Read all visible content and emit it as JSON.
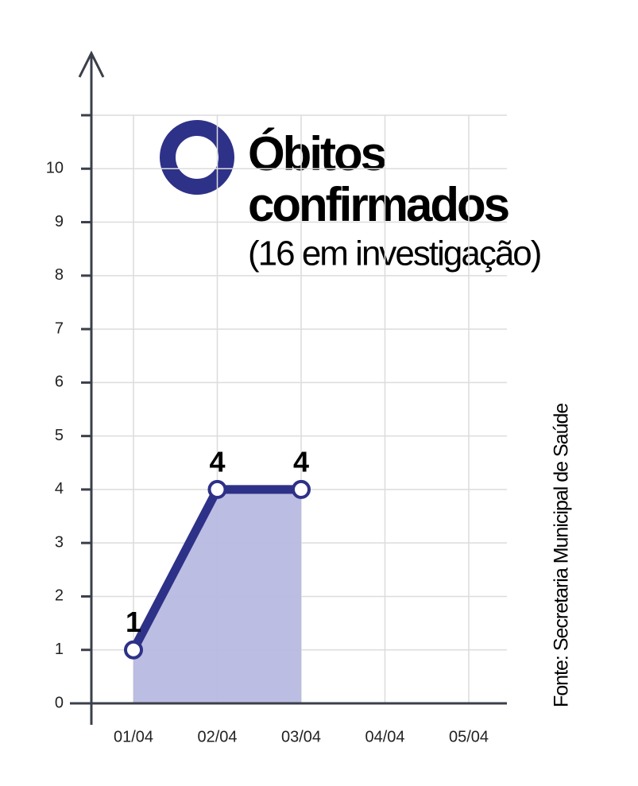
{
  "chart_data": {
    "type": "line",
    "title": [
      "Óbitos",
      "confirmados"
    ],
    "subtitle": "(16 em investigação)",
    "source": "Fonte: Secretaria Municipal de Saúde",
    "categories": [
      "01/04",
      "02/04",
      "03/04",
      "04/04",
      "05/04"
    ],
    "values": [
      1,
      4,
      4,
      null,
      null
    ],
    "color": "#2e3188",
    "area_color": "#b8b9e0",
    "ylim": [
      0,
      11
    ],
    "yticks": [
      0,
      1,
      2,
      3,
      4,
      5,
      6,
      7,
      8,
      9,
      10
    ],
    "grid": true
  }
}
